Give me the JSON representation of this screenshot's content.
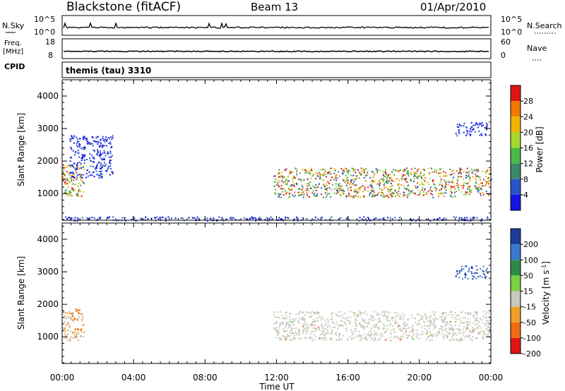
{
  "header": {
    "station": "Blackstone (fitACF)",
    "beam": "Beam 13",
    "date": "01/Apr/2010"
  },
  "noise_panel": {
    "left_label": "N.Sky",
    "right_label": "N.Search",
    "left_ticks": [
      "10^5",
      "10^0"
    ],
    "right_ticks": [
      "10^5",
      "10^0"
    ]
  },
  "freq_panel": {
    "left_label_top": "Freq.",
    "left_label_bottom": "[MHz]",
    "right_label": "Nave",
    "left_ticks": [
      "18",
      "8"
    ],
    "right_ticks": [
      "60",
      "0"
    ]
  },
  "cpid": {
    "label": "CPID",
    "value": "themis (tau) 3310"
  },
  "x_axis": {
    "title": "Time UT",
    "ticks": [
      "00:00",
      "04:00",
      "08:00",
      "12:00",
      "16:00",
      "20:00",
      "00:00"
    ],
    "range_hours": [
      0,
      24
    ]
  },
  "chart_data": [
    {
      "type": "heatmap",
      "xlabel": "Time UT",
      "ylabel": "Slant Range [km]",
      "ylim": [
        180,
        4500
      ],
      "yticks": [
        1000,
        2000,
        3000,
        4000
      ],
      "colorbar": {
        "label": "Power [dB]",
        "ticks": [
          "4",
          "8",
          "12",
          "16",
          "20",
          "24",
          "28"
        ],
        "colors": [
          "#1414e6",
          "#2a55c8",
          "#3a8a6a",
          "#4ab84a",
          "#a8d830",
          "#f0b400",
          "#f07800",
          "#e01414"
        ]
      },
      "regions": [
        {
          "t": [
            0.0,
            1.2
          ],
          "r": [
            900,
            1900
          ],
          "level": "medium-high"
        },
        {
          "t": [
            0.4,
            2.8
          ],
          "r": [
            1500,
            2800
          ],
          "level": "low"
        },
        {
          "t": [
            11.8,
            24.0
          ],
          "r": [
            900,
            1800
          ],
          "level": "high"
        },
        {
          "t": [
            22.0,
            23.8
          ],
          "r": [
            2800,
            3200
          ],
          "level": "low"
        },
        {
          "t": [
            0.0,
            24.0
          ],
          "r": [
            180,
            300
          ],
          "level": "low"
        }
      ]
    },
    {
      "type": "heatmap",
      "xlabel": "Time UT",
      "ylabel": "Slant Range [km]",
      "ylim": [
        180,
        4500
      ],
      "yticks": [
        1000,
        2000,
        3000,
        4000
      ],
      "colorbar": {
        "label": "Velocity [m s^-1]",
        "ticks": [
          "200",
          "100",
          "50",
          "15",
          "-15",
          "-50",
          "-100",
          "-200"
        ],
        "colors": [
          "#1e3c9e",
          "#3c78d0",
          "#2e8a4a",
          "#7ad040",
          "#c8c8c0",
          "#f0a028",
          "#f06a14",
          "#e01414"
        ]
      },
      "regions": [
        {
          "t": [
            0.0,
            1.2
          ],
          "r": [
            900,
            1900
          ],
          "level": "ground-scatter-and-negative"
        },
        {
          "t": [
            11.8,
            24.0
          ],
          "r": [
            900,
            1800
          ],
          "level": "ground-scatter"
        },
        {
          "t": [
            22.0,
            23.8
          ],
          "r": [
            2800,
            3200
          ],
          "level": "positive"
        }
      ]
    }
  ]
}
